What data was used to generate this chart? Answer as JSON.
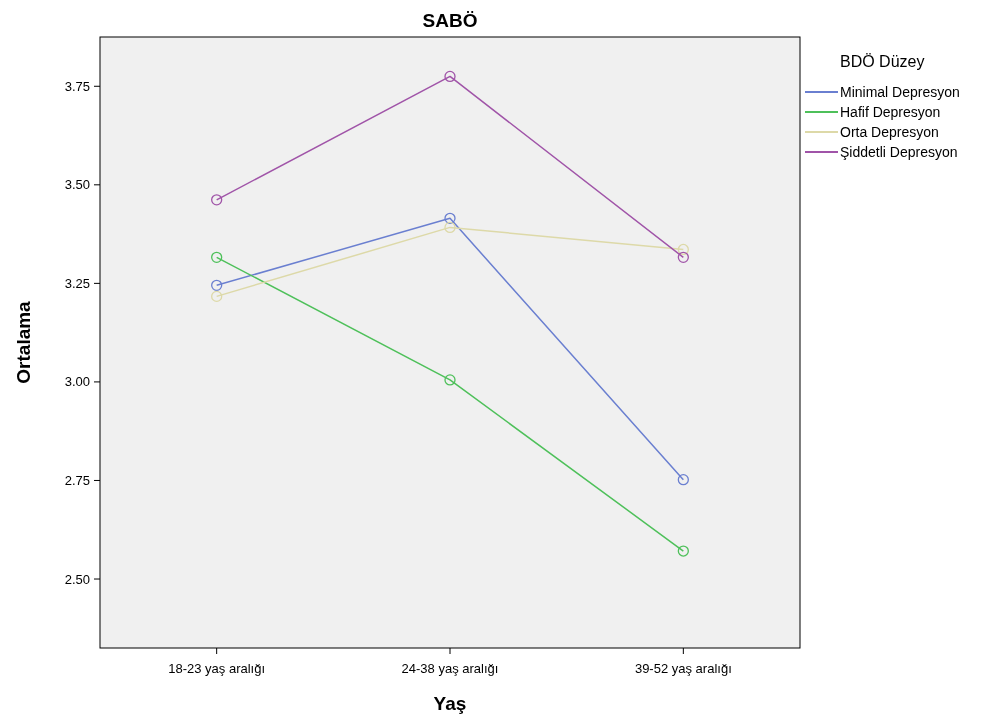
{
  "chart_data": {
    "type": "line",
    "title": "SABÖ",
    "xlabel": "Yaş",
    "ylabel": "Ortalama",
    "legend_title": "BDÖ Düzey",
    "categories": [
      "18-23 yaş aralığı",
      "24-38 yaş aralığı",
      "39-52 yaş aralığı"
    ],
    "series": [
      {
        "name": "Minimal Depresyon",
        "color": "#6a7fd0",
        "values": [
          3.245,
          3.415,
          2.752
        ]
      },
      {
        "name": "Hafif Depresyon",
        "color": "#4ec05a",
        "values": [
          3.316,
          3.005,
          2.571
        ]
      },
      {
        "name": "Orta Depresyon",
        "color": "#ddd9a8",
        "values": [
          3.217,
          3.392,
          3.336
        ]
      },
      {
        "name": "Şiddetli Depresyon",
        "color": "#a054a8",
        "values": [
          3.462,
          3.775,
          3.316
        ]
      }
    ],
    "ylim": [
      2.325,
      3.875
    ],
    "yticks": [
      {
        "value": 2.5,
        "label": "2.50"
      },
      {
        "value": 2.75,
        "label": "2.75"
      },
      {
        "value": 3,
        "label": "3.00"
      },
      {
        "value": 3.25,
        "label": "3.25"
      },
      {
        "value": 3.5,
        "label": "3.50"
      },
      {
        "value": 3.75,
        "label": "3.75"
      }
    ],
    "grid": false,
    "legend": "top right",
    "marker": "circle",
    "line_style": "solid"
  }
}
